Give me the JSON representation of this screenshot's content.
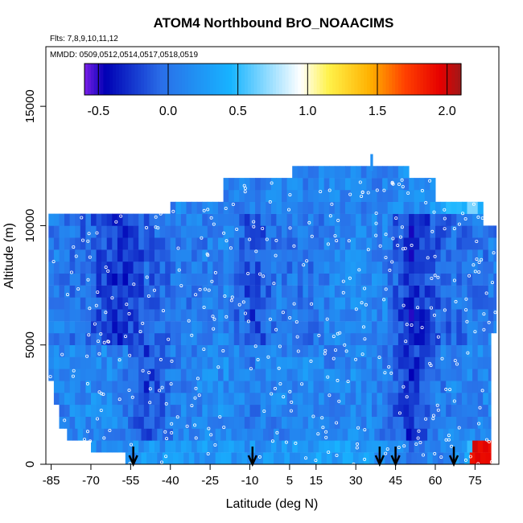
{
  "chart_data": {
    "type": "heatmap",
    "title": "ATOM4 Northbound BrO_NOAACIMS",
    "annotations": {
      "flights": "Flts: 7,8,9,10,11,12",
      "dates": "MMDD: 0509,0512,0514,0517,0518,0519"
    },
    "xlabel": "Latitude (deg N)",
    "ylabel": "Altitude (m)",
    "xlim": [
      -87,
      84
    ],
    "ylim": [
      0,
      17500
    ],
    "x_ticks": [
      -85,
      -70,
      -55,
      -40,
      -25,
      -10,
      5,
      15,
      30,
      45,
      60,
      75
    ],
    "y_ticks": [
      0,
      5000,
      10000,
      15000
    ],
    "colorbar": {
      "range": [
        -0.6,
        2.1
      ],
      "ticks": [
        "-0.5",
        "0.0",
        "0.5",
        "1.0",
        "1.5",
        "2.0"
      ],
      "tick_values": [
        -0.5,
        0.0,
        0.5,
        1.0,
        1.5,
        2.0
      ],
      "colors": [
        "#7a1fe8",
        "#0000b4",
        "#2a6ee8",
        "#17b4ff",
        "#ffffff",
        "#fff24a",
        "#ffb000",
        "#ff4000",
        "#e60000",
        "#a01818"
      ],
      "color_stops": [
        -0.6,
        -0.45,
        -0.05,
        0.45,
        0.95,
        1.15,
        1.45,
        1.7,
        1.95,
        2.1
      ]
    },
    "arrow_latitudes": [
      -54,
      -9,
      39,
      45,
      67
    ],
    "series": [
      {
        "x": [
          -80,
          -70,
          -60,
          -50,
          -40,
          -30,
          -20,
          -10,
          0,
          10,
          20,
          30,
          40,
          50,
          60,
          70,
          80
        ],
        "y_profile": "0-1000m",
        "values": [
          0.2,
          0.2,
          0.15,
          0.2,
          0.25,
          0.2,
          0.25,
          0.2,
          0.2,
          0.3,
          0.25,
          0.3,
          0.2,
          0.0,
          0.1,
          0.3,
          2.0
        ]
      },
      {
        "x": [
          -80,
          -70,
          -60,
          -50,
          -40,
          -30,
          -20,
          -10,
          0,
          10,
          20,
          30,
          40,
          50,
          60,
          70,
          80
        ],
        "y_profile": "1000-5000m",
        "values": [
          0.1,
          0.15,
          0.1,
          -0.2,
          0.05,
          0.1,
          0.15,
          0.05,
          0.1,
          0.15,
          0.1,
          0.15,
          0.05,
          -0.3,
          0.05,
          0.1,
          0.1
        ]
      },
      {
        "x": [
          -80,
          -70,
          -60,
          -50,
          -40,
          -30,
          -20,
          -10,
          0,
          10,
          20,
          30,
          40,
          50,
          60,
          70,
          80
        ],
        "y_profile": "5000-10500m",
        "values": [
          0.05,
          -0.1,
          -0.3,
          -0.1,
          0.0,
          0.05,
          0.1,
          -0.2,
          0.05,
          0.0,
          0.1,
          0.15,
          0.1,
          -0.35,
          -0.1,
          0.0,
          0.05
        ]
      },
      {
        "x": [
          -40,
          -30,
          -20,
          -10,
          0,
          10,
          20,
          30,
          40,
          50,
          60,
          70,
          80
        ],
        "y_profile": "10500-12000m",
        "values": [
          0.1,
          0.15,
          0.1,
          0.05,
          0.1,
          0.1,
          0.15,
          0.1,
          0.1,
          0.15,
          0.2,
          0.5,
          0.6
        ]
      }
    ]
  }
}
